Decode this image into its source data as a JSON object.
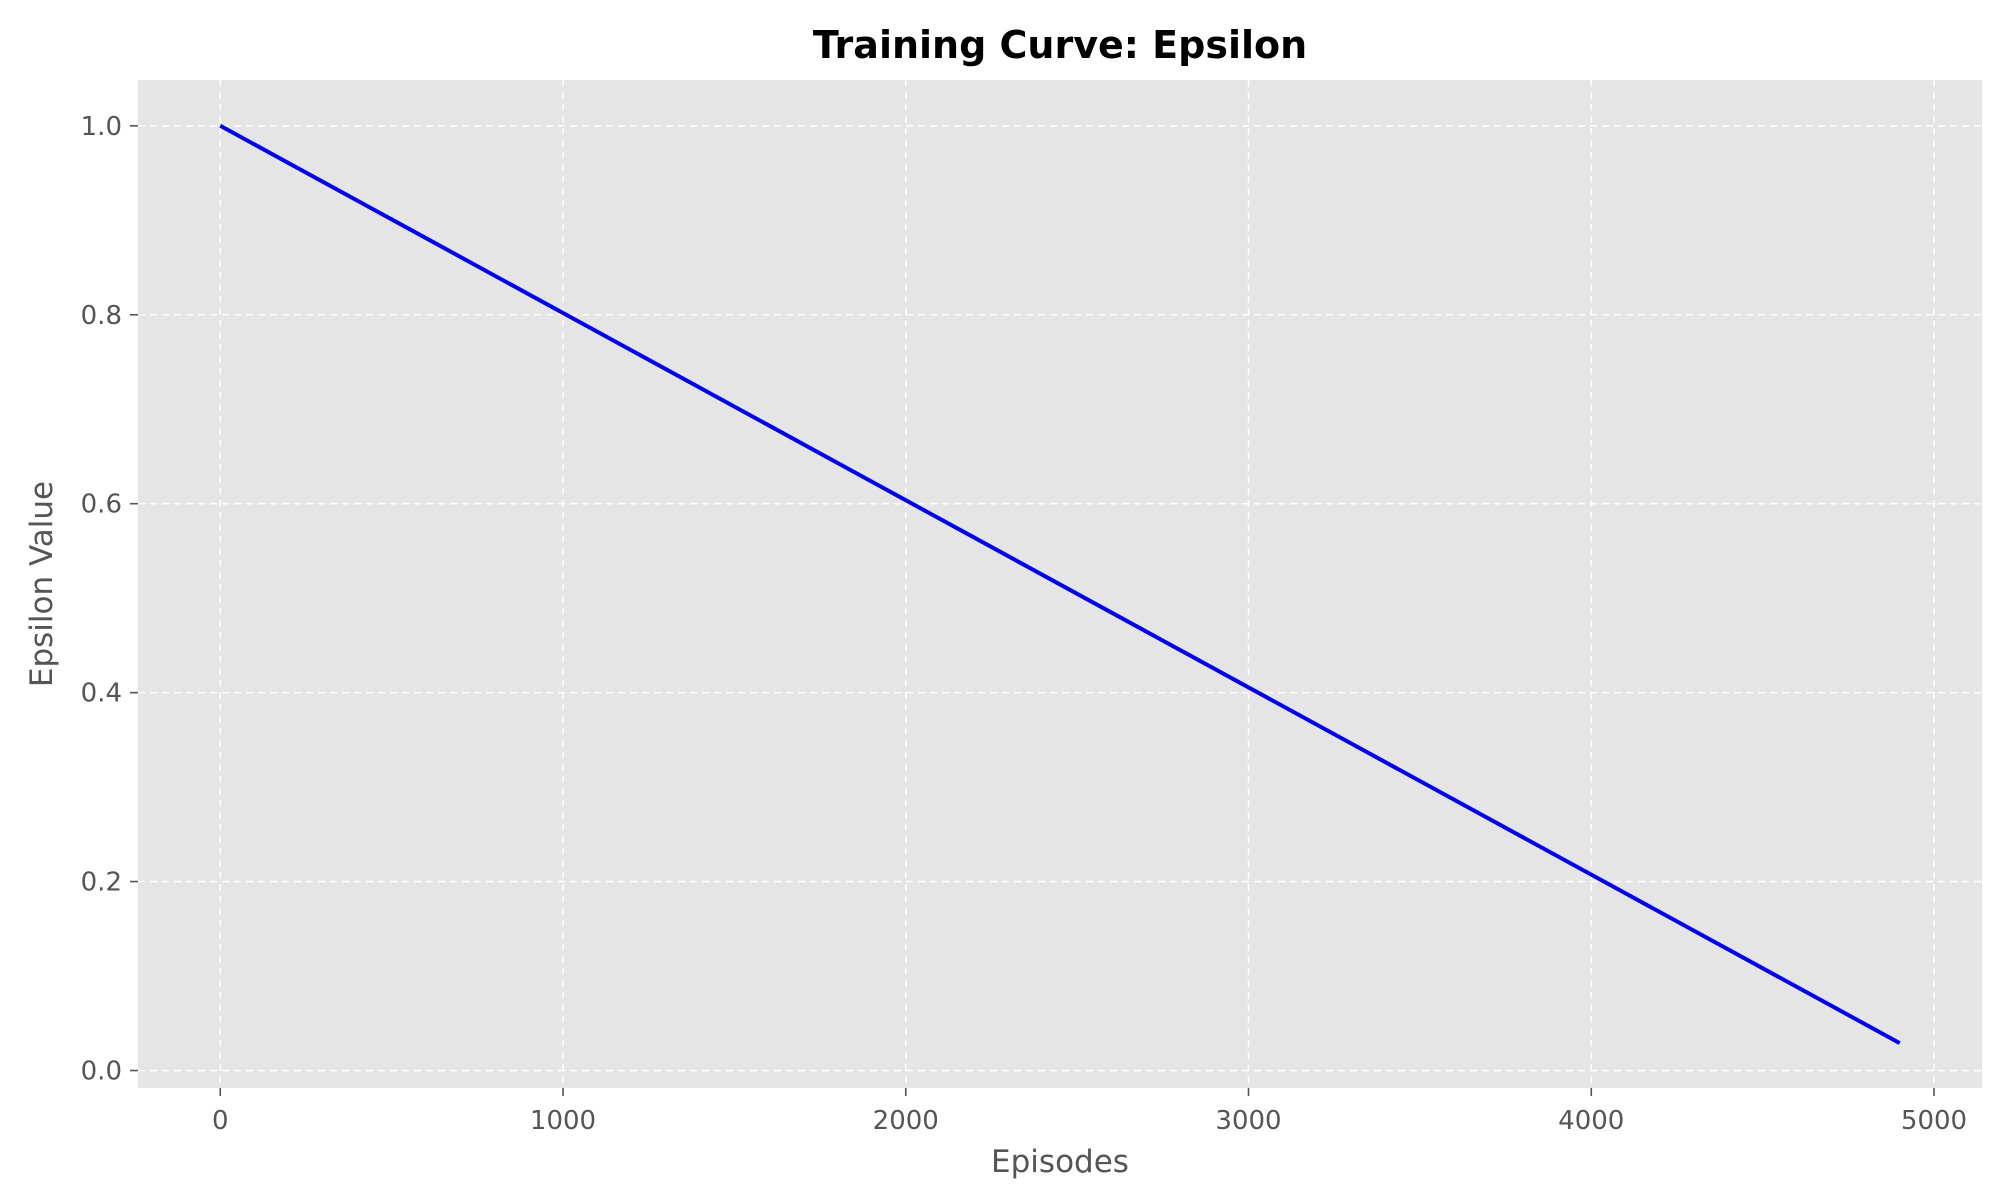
{
  "chart_data": {
    "type": "line",
    "title": "Training Curve: Epsilon",
    "xlabel": "Episodes",
    "ylabel": "Epsilon Value",
    "xlim": [
      -240,
      5140
    ],
    "ylim": [
      -0.0185,
      1.0485
    ],
    "xticks": [
      0,
      1000,
      2000,
      3000,
      4000,
      5000
    ],
    "yticks": [
      0.0,
      0.2,
      0.4,
      0.6,
      0.8,
      1.0
    ],
    "ytick_labels": [
      "0.0",
      "0.2",
      "0.4",
      "0.6",
      "0.8",
      "1.0"
    ],
    "grid": true,
    "background_color": "#e5e5e5",
    "series": [
      {
        "color": "#0000ee",
        "x": [
          0,
          4900
        ],
        "y": [
          1.0,
          0.029
        ]
      }
    ]
  }
}
